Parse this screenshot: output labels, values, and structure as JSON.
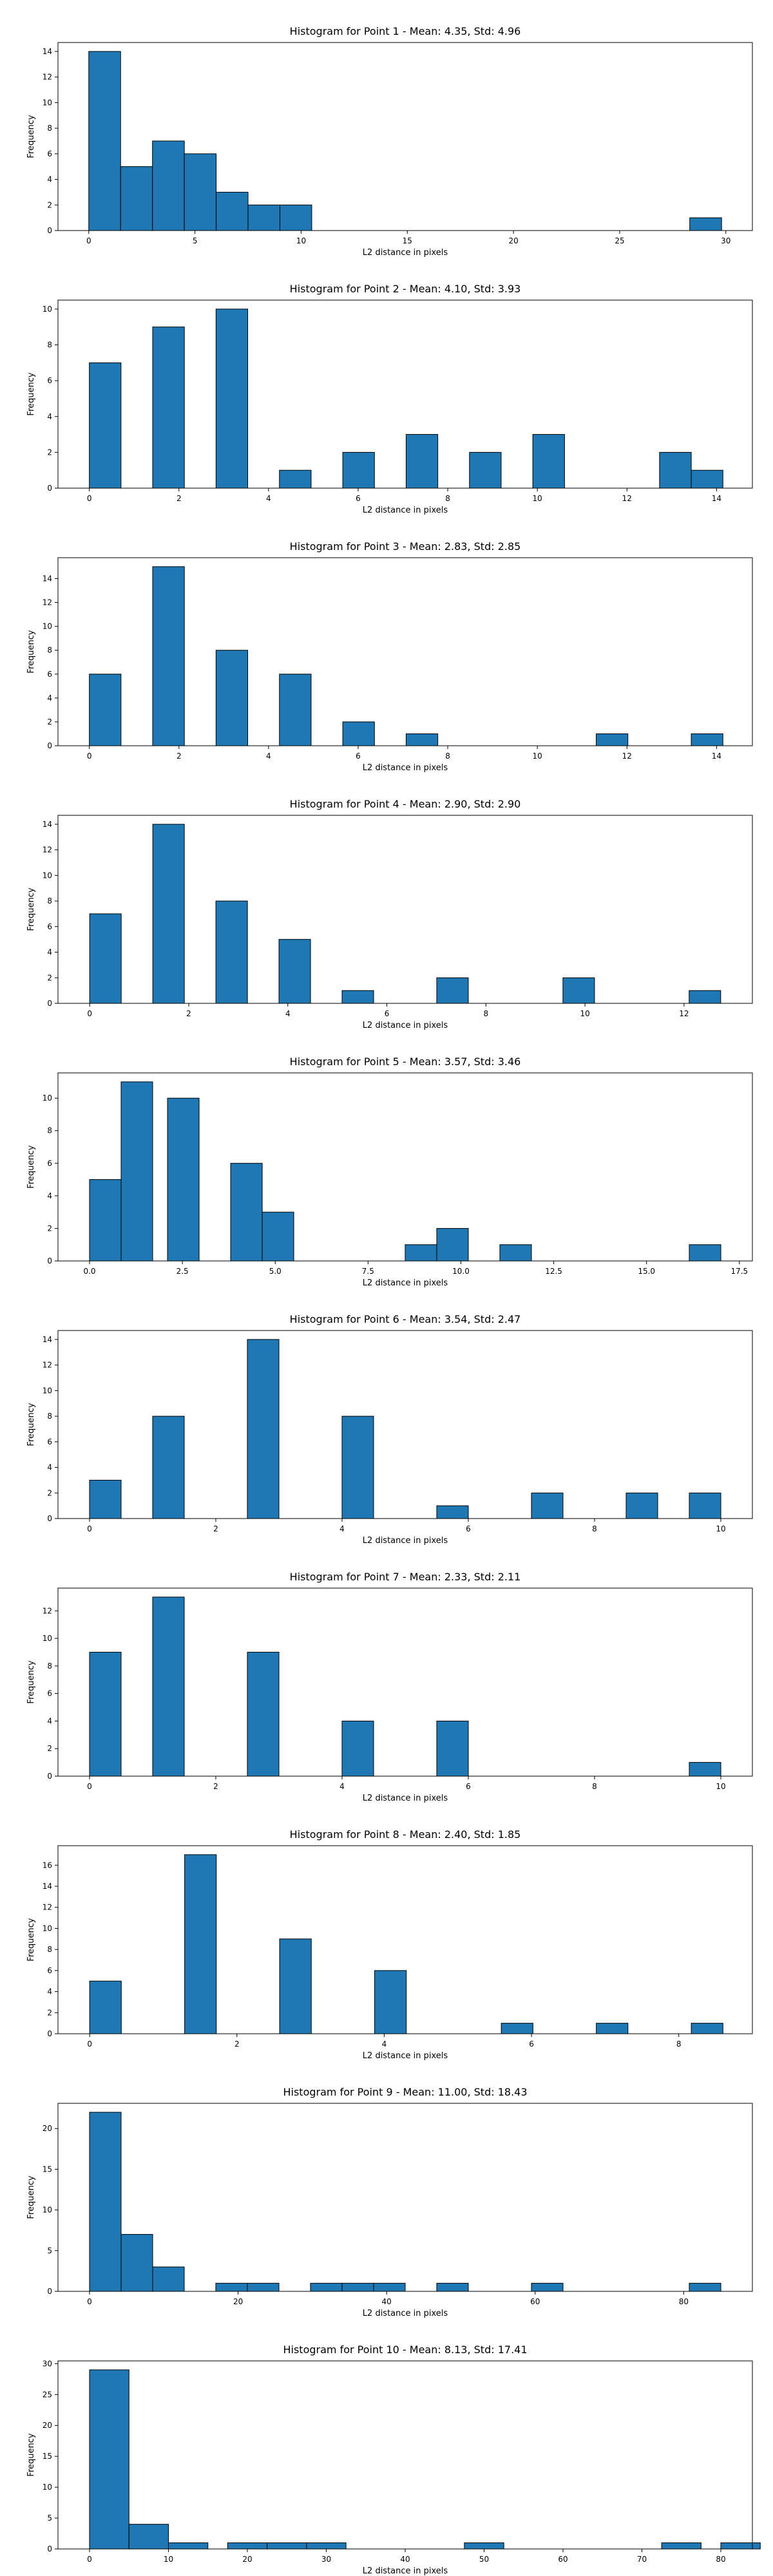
{
  "chart_data": [
    {
      "type": "bar",
      "title": "Histogram for Point 1 - Mean: 4.35, Std: 4.96",
      "xlabel": "L2 distance in pixels",
      "ylabel": "Frequency",
      "xlim": [
        -1.45,
        31.25
      ],
      "ylim": [
        0,
        14.7
      ],
      "xticks": [
        0,
        5,
        10,
        15,
        20,
        25,
        30
      ],
      "xtick_labels": [
        "0",
        "5",
        "10",
        "15",
        "20",
        "25",
        "30"
      ],
      "yticks": [
        0,
        2,
        4,
        6,
        8,
        10,
        12,
        14
      ],
      "ytick_labels": [
        "0",
        "2",
        "4",
        "6",
        "8",
        "10",
        "12",
        "14"
      ],
      "bins": [
        {
          "x0": 0.0,
          "x1": 1.5,
          "count": 14
        },
        {
          "x0": 1.5,
          "x1": 3.0,
          "count": 5
        },
        {
          "x0": 3.0,
          "x1": 4.5,
          "count": 7
        },
        {
          "x0": 4.5,
          "x1": 6.0,
          "count": 6
        },
        {
          "x0": 6.0,
          "x1": 7.5,
          "count": 3
        },
        {
          "x0": 7.5,
          "x1": 9.0,
          "count": 2
        },
        {
          "x0": 9.0,
          "x1": 10.5,
          "count": 2
        },
        {
          "x0": 28.3,
          "x1": 29.8,
          "count": 1
        }
      ]
    },
    {
      "type": "bar",
      "title": "Histogram for Point 2 - Mean: 4.10, Std: 3.93",
      "xlabel": "L2 distance in pixels",
      "ylabel": "Frequency",
      "xlim": [
        -0.7,
        14.8
      ],
      "ylim": [
        0,
        10.5
      ],
      "xticks": [
        0,
        2,
        4,
        6,
        8,
        10,
        12,
        14
      ],
      "xtick_labels": [
        "0",
        "2",
        "4",
        "6",
        "8",
        "10",
        "12",
        "14"
      ],
      "yticks": [
        0,
        2,
        4,
        6,
        8,
        10
      ],
      "ytick_labels": [
        "0",
        "2",
        "4",
        "6",
        "8",
        "10"
      ],
      "bins": [
        {
          "x0": 0.0,
          "x1": 0.707,
          "count": 7
        },
        {
          "x0": 1.414,
          "x1": 2.121,
          "count": 9
        },
        {
          "x0": 2.828,
          "x1": 3.535,
          "count": 10
        },
        {
          "x0": 4.243,
          "x1": 4.95,
          "count": 1
        },
        {
          "x0": 5.657,
          "x1": 6.364,
          "count": 2
        },
        {
          "x0": 7.071,
          "x1": 7.778,
          "count": 3
        },
        {
          "x0": 8.485,
          "x1": 9.192,
          "count": 2
        },
        {
          "x0": 9.899,
          "x1": 10.607,
          "count": 3
        },
        {
          "x0": 12.728,
          "x1": 13.435,
          "count": 2
        },
        {
          "x0": 13.435,
          "x1": 14.142,
          "count": 1
        }
      ]
    },
    {
      "type": "bar",
      "title": "Histogram for Point 3 - Mean: 2.83, Std: 2.85",
      "xlabel": "L2 distance in pixels",
      "ylabel": "Frequency",
      "xlim": [
        -0.7,
        14.8
      ],
      "ylim": [
        0,
        15.75
      ],
      "xticks": [
        0,
        2,
        4,
        6,
        8,
        10,
        12,
        14
      ],
      "xtick_labels": [
        "0",
        "2",
        "4",
        "6",
        "8",
        "10",
        "12",
        "14"
      ],
      "yticks": [
        0,
        2,
        4,
        6,
        8,
        10,
        12,
        14
      ],
      "ytick_labels": [
        "0",
        "2",
        "4",
        "6",
        "8",
        "10",
        "12",
        "14"
      ],
      "bins": [
        {
          "x0": 0.0,
          "x1": 0.707,
          "count": 6
        },
        {
          "x0": 1.414,
          "x1": 2.121,
          "count": 15
        },
        {
          "x0": 2.828,
          "x1": 3.535,
          "count": 8
        },
        {
          "x0": 4.243,
          "x1": 4.95,
          "count": 6
        },
        {
          "x0": 5.657,
          "x1": 6.364,
          "count": 2
        },
        {
          "x0": 7.071,
          "x1": 7.778,
          "count": 1
        },
        {
          "x0": 11.314,
          "x1": 12.021,
          "count": 1
        },
        {
          "x0": 13.435,
          "x1": 14.142,
          "count": 1
        }
      ]
    },
    {
      "type": "bar",
      "title": "Histogram for Point 4 - Mean: 2.90, Std: 2.90",
      "xlabel": "L2 distance in pixels",
      "ylabel": "Frequency",
      "xlim": [
        -0.64,
        13.38
      ],
      "ylim": [
        0,
        14.7
      ],
      "xticks": [
        0,
        2,
        4,
        6,
        8,
        10,
        12
      ],
      "xtick_labels": [
        "0",
        "2",
        "4",
        "6",
        "8",
        "10",
        "12"
      ],
      "yticks": [
        0,
        2,
        4,
        6,
        8,
        10,
        12,
        14
      ],
      "ytick_labels": [
        "0",
        "2",
        "4",
        "6",
        "8",
        "10",
        "12",
        "14"
      ],
      "bins": [
        {
          "x0": 0.0,
          "x1": 0.637,
          "count": 7
        },
        {
          "x0": 1.274,
          "x1": 1.911,
          "count": 14
        },
        {
          "x0": 2.548,
          "x1": 3.185,
          "count": 8
        },
        {
          "x0": 3.822,
          "x1": 4.459,
          "count": 5
        },
        {
          "x0": 5.096,
          "x1": 5.733,
          "count": 1
        },
        {
          "x0": 7.007,
          "x1": 7.644,
          "count": 2
        },
        {
          "x0": 9.555,
          "x1": 10.192,
          "count": 2
        },
        {
          "x0": 12.103,
          "x1": 12.74,
          "count": 1
        }
      ]
    },
    {
      "type": "bar",
      "title": "Histogram for Point 5 - Mean: 3.57, Std: 3.46",
      "xlabel": "L2 distance in pixels",
      "ylabel": "Frequency",
      "xlim": [
        -0.85,
        17.85
      ],
      "ylim": [
        0,
        11.55
      ],
      "xticks": [
        0.0,
        2.5,
        5.0,
        7.5,
        10.0,
        12.5,
        15.0,
        17.5
      ],
      "xtick_labels": [
        "0.0",
        "2.5",
        "5.0",
        "7.5",
        "10.0",
        "12.5",
        "15.0",
        "17.5"
      ],
      "yticks": [
        0,
        2,
        4,
        6,
        8,
        10
      ],
      "ytick_labels": [
        "0",
        "2",
        "4",
        "6",
        "8",
        "10"
      ],
      "bins": [
        {
          "x0": 0.0,
          "x1": 0.85,
          "count": 5
        },
        {
          "x0": 0.85,
          "x1": 1.7,
          "count": 11
        },
        {
          "x0": 2.1,
          "x1": 2.95,
          "count": 10
        },
        {
          "x0": 3.8,
          "x1": 4.65,
          "count": 6
        },
        {
          "x0": 4.65,
          "x1": 5.5,
          "count": 3
        },
        {
          "x0": 8.5,
          "x1": 9.35,
          "count": 1
        },
        {
          "x0": 9.35,
          "x1": 10.2,
          "count": 2
        },
        {
          "x0": 11.05,
          "x1": 11.9,
          "count": 1
        },
        {
          "x0": 16.15,
          "x1": 17.0,
          "count": 1
        }
      ]
    },
    {
      "type": "bar",
      "title": "Histogram for Point 6 - Mean: 3.54, Std: 2.47",
      "xlabel": "L2 distance in pixels",
      "ylabel": "Frequency",
      "xlim": [
        -0.5,
        10.5
      ],
      "ylim": [
        0,
        14.7
      ],
      "xticks": [
        0,
        2,
        4,
        6,
        8,
        10
      ],
      "xtick_labels": [
        "0",
        "2",
        "4",
        "6",
        "8",
        "10"
      ],
      "yticks": [
        0,
        2,
        4,
        6,
        8,
        10,
        12,
        14
      ],
      "ytick_labels": [
        "0",
        "2",
        "4",
        "6",
        "8",
        "10",
        "12",
        "14"
      ],
      "bins": [
        {
          "x0": 0.0,
          "x1": 0.5,
          "count": 3
        },
        {
          "x0": 1.0,
          "x1": 1.5,
          "count": 8
        },
        {
          "x0": 2.5,
          "x1": 3.0,
          "count": 14
        },
        {
          "x0": 4.0,
          "x1": 4.5,
          "count": 8
        },
        {
          "x0": 5.5,
          "x1": 6.0,
          "count": 1
        },
        {
          "x0": 7.0,
          "x1": 7.5,
          "count": 2
        },
        {
          "x0": 8.5,
          "x1": 9.0,
          "count": 2
        },
        {
          "x0": 9.5,
          "x1": 10.0,
          "count": 2
        }
      ]
    },
    {
      "type": "bar",
      "title": "Histogram for Point 7 - Mean: 2.33, Std: 2.11",
      "xlabel": "L2 distance in pixels",
      "ylabel": "Frequency",
      "xlim": [
        -0.5,
        10.5
      ],
      "ylim": [
        0,
        13.65
      ],
      "xticks": [
        0,
        2,
        4,
        6,
        8,
        10
      ],
      "xtick_labels": [
        "0",
        "2",
        "4",
        "6",
        "8",
        "10"
      ],
      "yticks": [
        0,
        2,
        4,
        6,
        8,
        10,
        12
      ],
      "ytick_labels": [
        "0",
        "2",
        "4",
        "6",
        "8",
        "10",
        "12"
      ],
      "bins": [
        {
          "x0": 0.0,
          "x1": 0.5,
          "count": 9
        },
        {
          "x0": 1.0,
          "x1": 1.5,
          "count": 13
        },
        {
          "x0": 2.5,
          "x1": 3.0,
          "count": 9
        },
        {
          "x0": 4.0,
          "x1": 4.5,
          "count": 4
        },
        {
          "x0": 5.5,
          "x1": 6.0,
          "count": 4
        },
        {
          "x0": 9.5,
          "x1": 10.0,
          "count": 1
        }
      ]
    },
    {
      "type": "bar",
      "title": "Histogram for Point 8 - Mean: 2.40, Std: 1.85",
      "xlabel": "L2 distance in pixels",
      "ylabel": "Frequency",
      "xlim": [
        -0.43,
        9.0
      ],
      "ylim": [
        0,
        17.85
      ],
      "xticks": [
        0,
        2,
        4,
        6,
        8
      ],
      "xtick_labels": [
        "0",
        "2",
        "4",
        "6",
        "8"
      ],
      "yticks": [
        0,
        2,
        4,
        6,
        8,
        10,
        12,
        14,
        16
      ],
      "ytick_labels": [
        "0",
        "2",
        "4",
        "6",
        "8",
        "10",
        "12",
        "14",
        "16"
      ],
      "bins": [
        {
          "x0": 0.0,
          "x1": 0.43,
          "count": 5
        },
        {
          "x0": 1.29,
          "x1": 1.72,
          "count": 17
        },
        {
          "x0": 2.58,
          "x1": 3.01,
          "count": 9
        },
        {
          "x0": 3.87,
          "x1": 4.3,
          "count": 6
        },
        {
          "x0": 5.59,
          "x1": 6.02,
          "count": 1
        },
        {
          "x0": 6.88,
          "x1": 7.31,
          "count": 1
        },
        {
          "x0": 8.17,
          "x1": 8.6,
          "count": 1
        }
      ]
    },
    {
      "type": "bar",
      "title": "Histogram for Point 9 - Mean: 11.00, Std: 18.43",
      "xlabel": "L2 distance in pixels",
      "ylabel": "Frequency",
      "xlim": [
        -4.25,
        89.25
      ],
      "ylim": [
        0,
        23.1
      ],
      "xticks": [
        0,
        20,
        40,
        60,
        80
      ],
      "xtick_labels": [
        "0",
        "20",
        "40",
        "60",
        "80"
      ],
      "yticks": [
        0,
        5,
        10,
        15,
        20
      ],
      "ytick_labels": [
        "0",
        "5",
        "10",
        "15",
        "20"
      ],
      "bins": [
        {
          "x0": 0.0,
          "x1": 4.25,
          "count": 22
        },
        {
          "x0": 4.25,
          "x1": 8.5,
          "count": 7
        },
        {
          "x0": 8.5,
          "x1": 12.75,
          "count": 3
        },
        {
          "x0": 17.0,
          "x1": 21.25,
          "count": 1
        },
        {
          "x0": 21.25,
          "x1": 25.5,
          "count": 1
        },
        {
          "x0": 29.75,
          "x1": 34.0,
          "count": 1
        },
        {
          "x0": 34.0,
          "x1": 38.25,
          "count": 1
        },
        {
          "x0": 38.25,
          "x1": 42.5,
          "count": 1
        },
        {
          "x0": 46.75,
          "x1": 51.0,
          "count": 1
        },
        {
          "x0": 59.5,
          "x1": 63.75,
          "count": 1
        },
        {
          "x0": 80.75,
          "x1": 85.0,
          "count": 1
        }
      ]
    },
    {
      "type": "bar",
      "title": "Histogram for Point 10 - Mean: 8.13, Std: 17.41",
      "xlabel": "L2 distance in pixels",
      "ylabel": "Frequency",
      "xlim": [
        -4.0,
        84.0
      ],
      "ylim": [
        0,
        30.45
      ],
      "xticks": [
        0,
        10,
        20,
        30,
        40,
        50,
        60,
        70,
        80
      ],
      "xtick_labels": [
        "0",
        "10",
        "20",
        "30",
        "40",
        "50",
        "60",
        "70",
        "80"
      ],
      "yticks": [
        0,
        5,
        10,
        15,
        20,
        25,
        30
      ],
      "ytick_labels": [
        "0",
        "5",
        "10",
        "15",
        "20",
        "25",
        "30"
      ],
      "bins": [
        {
          "x0": 0.0,
          "x1": 5.0,
          "count": 29
        },
        {
          "x0": 5.0,
          "x1": 10.0,
          "count": 4
        },
        {
          "x0": 10.0,
          "x1": 15.0,
          "count": 1
        },
        {
          "x0": 17.5,
          "x1": 22.5,
          "count": 1
        },
        {
          "x0": 22.5,
          "x1": 27.5,
          "count": 1
        },
        {
          "x0": 27.5,
          "x1": 32.5,
          "count": 1
        },
        {
          "x0": 47.5,
          "x1": 52.5,
          "count": 1
        },
        {
          "x0": 72.5,
          "x1": 77.5,
          "count": 1
        },
        {
          "x0": 80.0,
          "x1": 85.0,
          "count": 1
        }
      ]
    }
  ],
  "style": {
    "bar_fill": "#1f77b4",
    "bar_edge": "#000000",
    "axis_color": "#000000",
    "text_color": "#000000",
    "background": "#ffffff"
  }
}
